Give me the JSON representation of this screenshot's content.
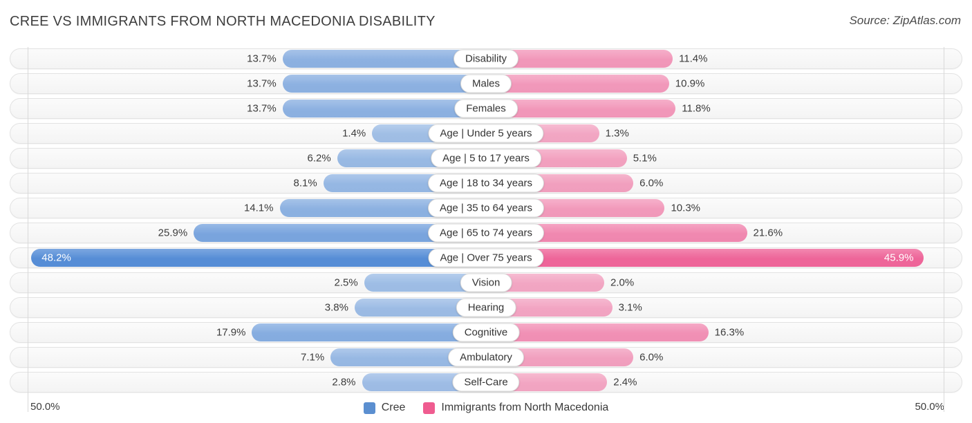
{
  "header": {
    "title": "CREE VS IMMIGRANTS FROM NORTH MACEDONIA DISABILITY",
    "source": "Source: ZipAtlas.com"
  },
  "axis": {
    "left_label": "50.0%",
    "right_label": "50.0%",
    "half_range_percent": 50
  },
  "legend": {
    "items": [
      {
        "label": "Cree",
        "color": "#5b8fd0"
      },
      {
        "label": "Immigrants from North Macedonia",
        "color": "#ef5c90"
      }
    ]
  },
  "chart_data": {
    "type": "bar",
    "orientation": "diverging-horizontal",
    "title": "Cree vs Immigrants from North Macedonia Disability",
    "categories": [
      "Disability",
      "Males",
      "Females",
      "Age | Under 5 years",
      "Age | 5 to 17 years",
      "Age | 18 to 34 years",
      "Age | 35 to 64 years",
      "Age | 65 to 74 years",
      "Age | Over 75 years",
      "Vision",
      "Hearing",
      "Cognitive",
      "Ambulatory",
      "Self-Care"
    ],
    "series": [
      {
        "name": "Cree",
        "side": "left",
        "color": "#3a7bd0",
        "rgb": "58,123,208",
        "values": [
          13.7,
          13.7,
          13.7,
          1.4,
          6.2,
          8.1,
          14.1,
          25.9,
          48.2,
          2.5,
          3.8,
          17.9,
          7.1,
          2.8
        ]
      },
      {
        "name": "Immigrants from North Macedonia",
        "side": "right",
        "color": "#ec4888",
        "rgb": "236,72,134",
        "values": [
          11.4,
          10.9,
          11.8,
          1.3,
          5.1,
          6.0,
          10.3,
          21.6,
          45.9,
          2.0,
          3.1,
          16.3,
          6.0,
          2.4
        ]
      }
    ],
    "value_suffix": "%",
    "xlim": [
      -50,
      50
    ],
    "grid": "vertical-edges-only",
    "legend_position": "bottom-center"
  }
}
